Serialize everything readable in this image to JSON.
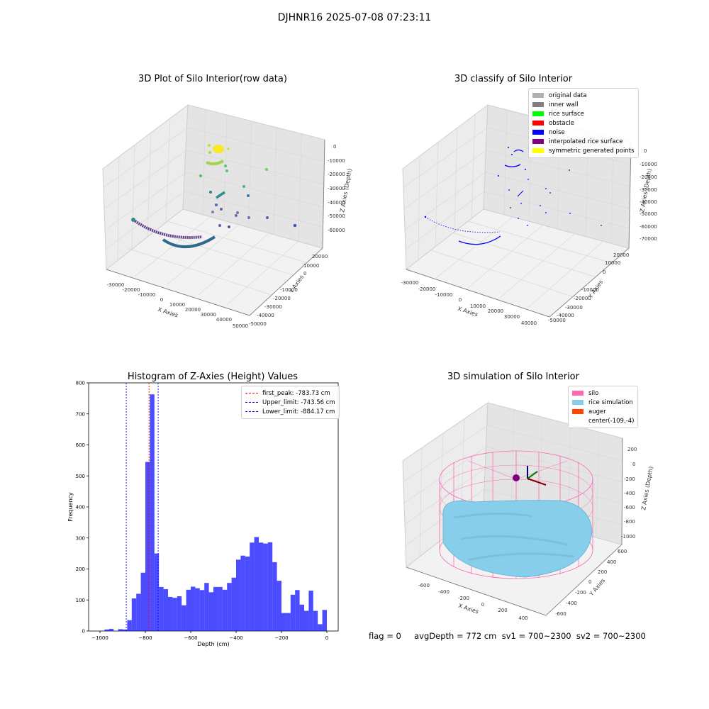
{
  "suptitle": "DJHNR16 2025-07-08 07:23:11",
  "panels": {
    "raw": {
      "title": "3D Plot of Silo Interior(row data)",
      "xlabel": "X Axies",
      "ylabel": "Y Axies",
      "zlabel": "Z Axies (Depth)",
      "xticks": [
        "-30000",
        "-20000",
        "-10000",
        "0",
        "10000",
        "20000",
        "30000",
        "40000",
        "50000"
      ],
      "yticks": [
        "20000",
        "10000",
        "0",
        "-10000",
        "-20000",
        "-30000",
        "-40000",
        "-50000"
      ],
      "zticks": [
        "0",
        "-10000",
        "-20000",
        "-30000",
        "-40000",
        "-50000",
        "-60000"
      ]
    },
    "classify": {
      "title": "3D classify of Silo Interior",
      "xlabel": "X Axies",
      "ylabel": "Y Axies",
      "zlabel": "Z Axies (Depth)",
      "xticks": [
        "-30000",
        "-20000",
        "-10000",
        "0",
        "10000",
        "20000",
        "30000",
        "40000"
      ],
      "yticks": [
        "20000",
        "10000",
        "0",
        "-10000",
        "-20000",
        "-30000",
        "-40000",
        "-50000"
      ],
      "zticks": [
        "0",
        "-10000",
        "-20000",
        "-30000",
        "-40000",
        "-50000",
        "-60000",
        "-70000"
      ],
      "legend": [
        {
          "label": "original data",
          "color": "#b0b0b0"
        },
        {
          "label": "inner wall",
          "color": "#808080"
        },
        {
          "label": "rice surface",
          "color": "#00ff00"
        },
        {
          "label": "obstacle",
          "color": "#ff0000"
        },
        {
          "label": "noise",
          "color": "#0000ff"
        },
        {
          "label": "interpolated rice surface",
          "color": "#800080"
        },
        {
          "label": "symmetric generated points",
          "color": "#ffff00"
        }
      ]
    },
    "histogram": {
      "title": "Histogram of Z-Axies (Height) Values",
      "legend": [
        {
          "label": "first_peak: -783.73 cm",
          "color": "#ff0000"
        },
        {
          "label": "Upper_limit: -743.56 cm",
          "color": "#0000ff"
        },
        {
          "label": "Lower_limit: -884.17 cm",
          "color": "#0000ff"
        }
      ]
    },
    "simulation": {
      "title": "3D simulation of Silo Interior",
      "xlabel": "X Axies",
      "ylabel": "Y Axies",
      "zlabel": "Z Axies (Depth)",
      "xticks": [
        "-600",
        "-400",
        "-200",
        "0",
        "200",
        "400"
      ],
      "yticks": [
        "600",
        "400",
        "200",
        "0",
        "-200",
        "-400",
        "-600"
      ],
      "zticks": [
        "200",
        "0",
        "-200",
        "-400",
        "-600",
        "-800",
        "-1000"
      ],
      "legend": [
        {
          "label": "silo",
          "color": "#ff69b4"
        },
        {
          "label": "rice simulation",
          "color": "#87ceeb"
        },
        {
          "label": "auger",
          "color": "#ff4500"
        },
        {
          "label": "center(-109,-4)",
          "color": ""
        }
      ]
    }
  },
  "status_text": "flag = 0     avgDepth = 772 cm  sv1 = 700~2300  sv2 = 700~2300",
  "chart_data": {
    "type": "bar",
    "title": "Histogram of Z-Axies (Height) Values",
    "xlabel": "Depth (cm)",
    "ylabel": "Frequency",
    "xlim": [
      -1050,
      50
    ],
    "ylim": [
      0,
      800
    ],
    "xticks": [
      -1000,
      -800,
      -600,
      -400,
      -200,
      0
    ],
    "yticks": [
      0,
      100,
      200,
      300,
      400,
      500,
      600,
      700,
      800
    ],
    "bar_color": "#0000ff",
    "bin_width": 20,
    "bins": [
      {
        "x": -980,
        "y": 5
      },
      {
        "x": -960,
        "y": 7
      },
      {
        "x": -940,
        "y": 0
      },
      {
        "x": -920,
        "y": 6
      },
      {
        "x": -900,
        "y": 5
      },
      {
        "x": -880,
        "y": 35
      },
      {
        "x": -860,
        "y": 105
      },
      {
        "x": -840,
        "y": 120
      },
      {
        "x": -820,
        "y": 188
      },
      {
        "x": -800,
        "y": 545
      },
      {
        "x": -780,
        "y": 763
      },
      {
        "x": -760,
        "y": 250
      },
      {
        "x": -740,
        "y": 142
      },
      {
        "x": -720,
        "y": 135
      },
      {
        "x": -700,
        "y": 110
      },
      {
        "x": -680,
        "y": 107
      },
      {
        "x": -660,
        "y": 112
      },
      {
        "x": -640,
        "y": 83
      },
      {
        "x": -620,
        "y": 133
      },
      {
        "x": -600,
        "y": 143
      },
      {
        "x": -580,
        "y": 138
      },
      {
        "x": -560,
        "y": 132
      },
      {
        "x": -540,
        "y": 155
      },
      {
        "x": -520,
        "y": 125
      },
      {
        "x": -500,
        "y": 142
      },
      {
        "x": -480,
        "y": 142
      },
      {
        "x": -460,
        "y": 133
      },
      {
        "x": -440,
        "y": 155
      },
      {
        "x": -420,
        "y": 172
      },
      {
        "x": -400,
        "y": 230
      },
      {
        "x": -380,
        "y": 243
      },
      {
        "x": -360,
        "y": 240
      },
      {
        "x": -340,
        "y": 285
      },
      {
        "x": -320,
        "y": 303
      },
      {
        "x": -300,
        "y": 285
      },
      {
        "x": -280,
        "y": 282
      },
      {
        "x": -260,
        "y": 286
      },
      {
        "x": -240,
        "y": 222
      },
      {
        "x": -220,
        "y": 162
      },
      {
        "x": -200,
        "y": 58
      },
      {
        "x": -180,
        "y": 58
      },
      {
        "x": -160,
        "y": 117
      },
      {
        "x": -140,
        "y": 132
      },
      {
        "x": -120,
        "y": 85
      },
      {
        "x": -100,
        "y": 65
      },
      {
        "x": -80,
        "y": 130
      },
      {
        "x": -60,
        "y": 65
      },
      {
        "x": -40,
        "y": 22
      },
      {
        "x": -20,
        "y": 68
      }
    ],
    "vlines": [
      {
        "name": "first_peak",
        "value": -783.73,
        "color": "#ff0000"
      },
      {
        "name": "Upper_limit",
        "value": -743.56,
        "color": "#0000ff"
      },
      {
        "name": "Lower_limit",
        "value": -884.17,
        "color": "#0000ff"
      }
    ]
  }
}
